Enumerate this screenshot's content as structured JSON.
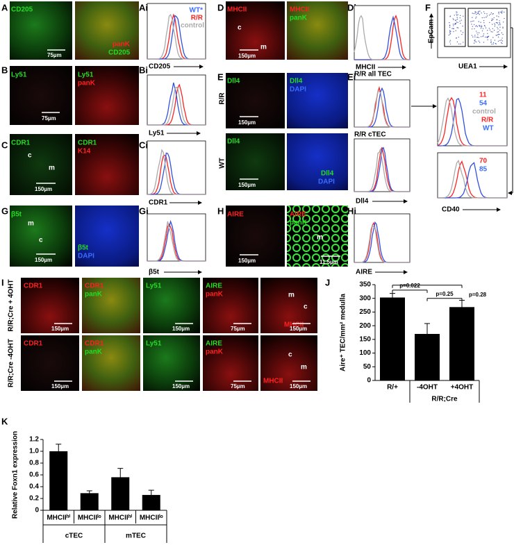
{
  "A": {
    "letter": "A",
    "stain": "CD205",
    "merge_1": "panK",
    "merge_2": "CD205",
    "scale": "75µm"
  },
  "Ai": {
    "letter": "Ai",
    "legend": [
      "WT*",
      "R/R",
      "control"
    ],
    "xlabel": "CD205"
  },
  "B": {
    "letter": "B",
    "stain": "Ly51",
    "merge_1": "Ly51",
    "merge_2": "panK",
    "scale": "75µm"
  },
  "Bi": {
    "letter": "Bi",
    "xlabel": "Ly51"
  },
  "C": {
    "letter": "C",
    "stain": "CDR1",
    "c": "c",
    "m": "m",
    "scale": "150µm",
    "merge_1": "CDR1",
    "merge_2": "K14"
  },
  "Ci": {
    "letter": "Ci",
    "xlabel": "CDR1"
  },
  "G": {
    "letter": "G",
    "stain": "β5t",
    "m": "m",
    "c": "c",
    "scale": "150µm",
    "merge_1": "β5t",
    "merge_2": "DAPI"
  },
  "Gi": {
    "letter": "Gi",
    "xlabel": "β5t"
  },
  "D": {
    "letter": "D",
    "stain": "MHCII",
    "c": "c",
    "m": "m",
    "scale": "150µm",
    "merge_1": "MHCII",
    "merge_2": "panK"
  },
  "Di": {
    "letter": "Di",
    "xlabel": "MHCII"
  },
  "E": {
    "letter": "E",
    "row_1": "R/R",
    "row_2": "WT",
    "stain_1": "Dll4",
    "scale_1": "150µm",
    "merge_1a": "Dll4",
    "merge_1b": "DAPI",
    "stain_2": "Dll4",
    "scale_2": "150µm",
    "merge_2a": "Dll4",
    "merge_2b": "DAPI"
  },
  "Ei": {
    "letter": "Ei",
    "title_1": "R/R all TEC",
    "title_2": "R/R cTEC",
    "xlabel": "Dll4"
  },
  "H": {
    "letter": "H",
    "stain": "AIRE",
    "scale": "150µm",
    "merge_1": "AIRE",
    "merge_2": "panK",
    "m": "m",
    "scale_2": "11.5µm"
  },
  "Hi": {
    "letter": "Hi",
    "xlabel": "AIRE"
  },
  "F": {
    "letter": "F",
    "ylabel": "EpCam",
    "xlabel_1": "UEA1",
    "hist_1": [
      "11",
      "54",
      "control",
      "R/R",
      "WT"
    ],
    "hist_2": [
      "70",
      "85"
    ],
    "xlabel_2": "CD40"
  },
  "I": {
    "letter": "I",
    "rows": [
      {
        "label": "R/R;Cre + 4OHT",
        "cells": [
          {
            "texts": [
              {
                "text": "CDR1",
                "color": "#ff2020"
              }
            ],
            "scale": "150µm"
          },
          {
            "texts": [
              {
                "text": "CDR1",
                "color": "#ff2020"
              },
              {
                "text": "panK",
                "color": "#22dd22"
              }
            ]
          },
          {
            "texts": [
              {
                "text": "Ly51",
                "color": "#22dd22"
              }
            ],
            "scale": "150µm"
          },
          {
            "texts": [
              {
                "text": "AIRE",
                "color": "#22dd22"
              },
              {
                "text": "panK",
                "color": "#ff2020"
              }
            ],
            "scale": "75µm"
          },
          {
            "texts": [
              {
                "text": "m",
                "color": "#ffffff"
              },
              {
                "text": "c",
                "color": "#ffffff"
              },
              {
                "text": "MHCII",
                "color": "#ff2020"
              }
            ],
            "scale": "150µm"
          }
        ]
      },
      {
        "label": "R/R;Cre -4OHT",
        "cells": [
          {
            "texts": [
              {
                "text": "CDR1",
                "color": "#ff2020"
              }
            ],
            "scale": "150µm"
          },
          {
            "texts": [
              {
                "text": "CDR1",
                "color": "#ff2020"
              },
              {
                "text": "panK",
                "color": "#22dd22"
              }
            ]
          },
          {
            "texts": [
              {
                "text": "Ly51",
                "color": "#22dd22"
              }
            ],
            "scale": "150µm"
          },
          {
            "texts": [
              {
                "text": "AIRE",
                "color": "#22dd22"
              },
              {
                "text": "panK",
                "color": "#ff2020"
              }
            ],
            "scale": "75µm"
          },
          {
            "texts": [
              {
                "text": "c",
                "color": "#ffffff"
              },
              {
                "text": "m",
                "color": "#ffffff"
              },
              {
                "text": "MHCII",
                "color": "#ff2020"
              }
            ],
            "scale": "150µm"
          }
        ]
      }
    ]
  },
  "J": {
    "letter": "J"
  },
  "K": {
    "letter": "K"
  },
  "chart_data": [
    {
      "type": "bar",
      "ylabel": "Aire⁺ TEC/mm² medulla",
      "categories": [
        "R/+",
        "-4OHT",
        "+4OHT"
      ],
      "group_label": "R/R;Cre",
      "values": [
        303,
        170,
        268
      ],
      "errors": [
        15,
        38,
        25
      ],
      "color": "#000000",
      "ylim": [
        0,
        350
      ],
      "yticks": [
        0,
        50,
        100,
        150,
        200,
        250,
        300,
        350
      ],
      "annotations": [
        "p=0.022",
        "p=0.25",
        "p=0.28"
      ]
    },
    {
      "type": "bar",
      "ylabel": "Relative Foxn1 expression",
      "categories": [
        "MHCIIʰⁱ",
        "MHCIIˡᵒ",
        "MHCIIʰⁱ",
        "MHCIIˡᵒ"
      ],
      "groups": [
        "cTEC",
        "mTEC"
      ],
      "values": [
        1.0,
        0.29,
        0.56,
        0.26
      ],
      "errors": [
        0.12,
        0.04,
        0.15,
        0.08
      ],
      "color": "#000000",
      "ylim": [
        0,
        1.2
      ],
      "yticks": [
        0,
        0.2,
        0.4,
        0.6,
        0.8,
        {
          "value": 1.0,
          "label": "1.0"
        },
        1.2
      ]
    }
  ]
}
